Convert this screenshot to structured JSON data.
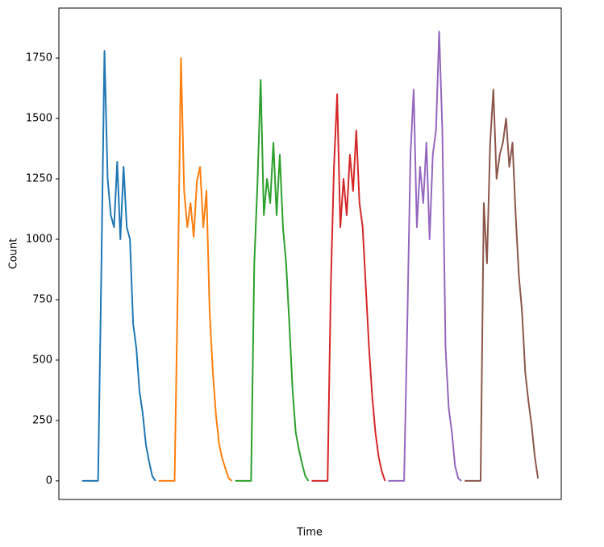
{
  "chart_data": {
    "type": "line",
    "x_label": "Time",
    "y_label": "Count",
    "xlim": [
      -7.3,
      150.3
    ],
    "ylim": [
      -77,
      1957
    ],
    "yticks": [
      0,
      250,
      500,
      750,
      1000,
      1250,
      1500,
      1750
    ],
    "series": [
      {
        "color": "#1f77b4",
        "x": [
          0,
          1,
          2,
          3,
          4,
          5,
          6,
          7,
          8,
          9,
          10,
          11,
          12,
          13,
          14,
          15,
          16,
          17,
          18,
          19,
          20,
          21,
          22,
          23
        ],
        "values": [
          0,
          0,
          0,
          0,
          0,
          0,
          850,
          1780,
          1250,
          1100,
          1050,
          1320,
          1000,
          1300,
          1050,
          1000,
          650,
          550,
          370,
          280,
          150,
          80,
          20,
          0
        ]
      },
      {
        "color": "#ff7f0e",
        "x": [
          24,
          25,
          26,
          27,
          28,
          29,
          30,
          31,
          32,
          33,
          34,
          35,
          36,
          37,
          38,
          39,
          40,
          41,
          42,
          43,
          44,
          45,
          46,
          47
        ],
        "values": [
          0,
          0,
          0,
          0,
          0,
          0,
          800,
          1750,
          1200,
          1050,
          1150,
          1010,
          1240,
          1300,
          1050,
          1200,
          700,
          450,
          270,
          150,
          90,
          50,
          10,
          0
        ]
      },
      {
        "color": "#2ca02c",
        "x": [
          48,
          49,
          50,
          51,
          52,
          53,
          54,
          55,
          56,
          57,
          58,
          59,
          60,
          61,
          62,
          63,
          64,
          65,
          66,
          67,
          68,
          69,
          70,
          71
        ],
        "values": [
          0,
          0,
          0,
          0,
          0,
          0,
          900,
          1230,
          1660,
          1100,
          1250,
          1150,
          1400,
          1100,
          1350,
          1050,
          900,
          650,
          380,
          200,
          130,
          70,
          20,
          0
        ]
      },
      {
        "color": "#d62728",
        "x": [
          72,
          73,
          74,
          75,
          76,
          77,
          78,
          79,
          80,
          81,
          82,
          83,
          84,
          85,
          86,
          87,
          88,
          89,
          90,
          91,
          92,
          93,
          94,
          95
        ],
        "values": [
          0,
          0,
          0,
          0,
          0,
          0,
          800,
          1300,
          1600,
          1050,
          1250,
          1100,
          1350,
          1200,
          1450,
          1150,
          1050,
          800,
          550,
          350,
          200,
          100,
          40,
          0
        ]
      },
      {
        "color": "#9467bd",
        "x": [
          96,
          97,
          98,
          99,
          100,
          101,
          102,
          103,
          104,
          105,
          106,
          107,
          108,
          109,
          110,
          111,
          112,
          113,
          114,
          115,
          116,
          117,
          118,
          119
        ],
        "values": [
          0,
          0,
          0,
          0,
          0,
          0,
          650,
          1350,
          1620,
          1050,
          1300,
          1150,
          1400,
          1000,
          1350,
          1450,
          1860,
          1450,
          550,
          300,
          200,
          60,
          10,
          0
        ]
      },
      {
        "color": "#8c564b",
        "x": [
          120,
          121,
          122,
          123,
          124,
          125,
          126,
          127,
          128,
          129,
          130,
          131,
          132,
          133,
          134,
          135,
          136,
          137,
          138,
          139,
          140,
          141,
          142,
          143
        ],
        "values": [
          0,
          0,
          0,
          0,
          0,
          0,
          1150,
          900,
          1400,
          1620,
          1250,
          1350,
          1400,
          1500,
          1300,
          1400,
          1100,
          850,
          700,
          450,
          330,
          230,
          100,
          10
        ]
      }
    ]
  }
}
